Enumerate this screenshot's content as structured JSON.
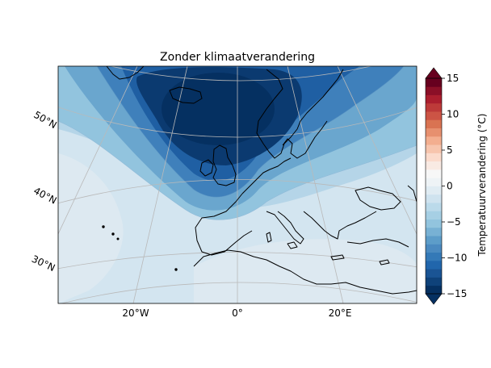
{
  "title": "Zonder klimaatverandering",
  "lon_labels": [
    "20°W",
    "0°",
    "20°E"
  ],
  "lat_labels": [
    "50°N",
    "40°N",
    "30°N"
  ],
  "colorbar": {
    "label": "Temperatuurverandering (°C)",
    "ticks": [
      "15",
      "10",
      "5",
      "0",
      "−5",
      "−10",
      "−15"
    ],
    "tick_values": [
      15,
      10,
      5,
      0,
      -5,
      -10,
      -15
    ],
    "range": [
      -15,
      15
    ],
    "colormap": "RdBu_r",
    "extend": "both",
    "colors": [
      "#053061",
      "#0f427a",
      "#1a5494",
      "#2166ac",
      "#3479b7",
      "#4b8ac0",
      "#5d9dc9",
      "#78b1d4",
      "#92c4de",
      "#a6cfe4",
      "#bbdaea",
      "#cfe3ef",
      "#e0ecf3",
      "#eef3f6",
      "#f7f7f7",
      "#f9eae3",
      "#fbdbcc",
      "#f7c5ad",
      "#f3ae8f",
      "#e7906f",
      "#d97352",
      "#cc5445",
      "#bd3a39",
      "#ab1e2e",
      "#8b0f27",
      "#67001f"
    ]
  },
  "map": {
    "projection": "conic, lambert conformal",
    "extent": {
      "lon": [
        -35,
        35
      ],
      "lat": [
        25,
        62
      ]
    },
    "field": "temperature change (°C), cold anomaly over northern Europe ≈ −15, near 0 over south"
  }
}
